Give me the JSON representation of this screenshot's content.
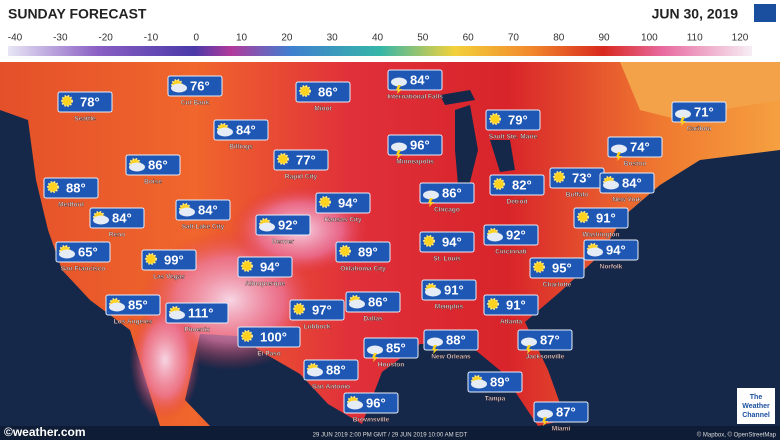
{
  "header": {
    "title": "SUNDAY FORECAST",
    "date": "JUN 30, 2019"
  },
  "scale": {
    "ticks": [
      "-40",
      "-30",
      "-20",
      "-10",
      "0",
      "10",
      "20",
      "30",
      "40",
      "50",
      "60",
      "70",
      "80",
      "90",
      "100",
      "110",
      "120"
    ]
  },
  "cities": [
    {
      "name": "Seattle",
      "temp": "78°"
    },
    {
      "name": "Cut Bank",
      "temp": "76°"
    },
    {
      "name": "Minot",
      "temp": "86°"
    },
    {
      "name": "International Falls",
      "temp": "84°"
    },
    {
      "name": "Sault Ste. Marie",
      "temp": "79°"
    },
    {
      "name": "Caribou",
      "temp": "71°"
    },
    {
      "name": "Billings",
      "temp": "84°"
    },
    {
      "name": "Rapid City",
      "temp": "77°"
    },
    {
      "name": "Minneapolis",
      "temp": "96°"
    },
    {
      "name": "Boston",
      "temp": "74°"
    },
    {
      "name": "Boise",
      "temp": "86°"
    },
    {
      "name": "Medford",
      "temp": "88°"
    },
    {
      "name": "Reno",
      "temp": "84°"
    },
    {
      "name": "Salt Lake City",
      "temp": "84°"
    },
    {
      "name": "Denver",
      "temp": "92°"
    },
    {
      "name": "Kansas City",
      "temp": "94°"
    },
    {
      "name": "Chicago",
      "temp": "86°"
    },
    {
      "name": "Detroit",
      "temp": "82°"
    },
    {
      "name": "Buffalo",
      "temp": "73°"
    },
    {
      "name": "New York",
      "temp": "84°"
    },
    {
      "name": "Washington",
      "temp": "91°"
    },
    {
      "name": "Cincinnati",
      "temp": "92°"
    },
    {
      "name": "St. Louis",
      "temp": "94°"
    },
    {
      "name": "Oklahoma City",
      "temp": "89°"
    },
    {
      "name": "Albuquerque",
      "temp": "94°"
    },
    {
      "name": "Las Vegas",
      "temp": "99°"
    },
    {
      "name": "San Francisco",
      "temp": "65°"
    },
    {
      "name": "Norfolk",
      "temp": "94°"
    },
    {
      "name": "Charlotte",
      "temp": "95°"
    },
    {
      "name": "Memphis",
      "temp": "91°"
    },
    {
      "name": "Atlanta",
      "temp": "91°"
    },
    {
      "name": "Dallas",
      "temp": "86°"
    },
    {
      "name": "Lubbock",
      "temp": "97°"
    },
    {
      "name": "Phoenix",
      "temp": "111°"
    },
    {
      "name": "Los Angeles",
      "temp": "85°"
    },
    {
      "name": "El Paso",
      "temp": "100°"
    },
    {
      "name": "Houston",
      "temp": "85°"
    },
    {
      "name": "New Orleans",
      "temp": "88°"
    },
    {
      "name": "Jacksonville",
      "temp": "87°"
    },
    {
      "name": "San Antonio",
      "temp": "88°"
    },
    {
      "name": "Tampa",
      "temp": "89°"
    },
    {
      "name": "Brownsville",
      "temp": "96°"
    },
    {
      "name": "Miami",
      "temp": "87°"
    }
  ],
  "footer": {
    "source": "©weather.com",
    "timestamp": "29 JUN 2019 2:00 PM GMT / 29 JUN 2019 10:00 AM EDT",
    "credit": "© Mapbox, © OpenStreetMap",
    "logo": [
      "The",
      "Weather",
      "Channel"
    ]
  }
}
